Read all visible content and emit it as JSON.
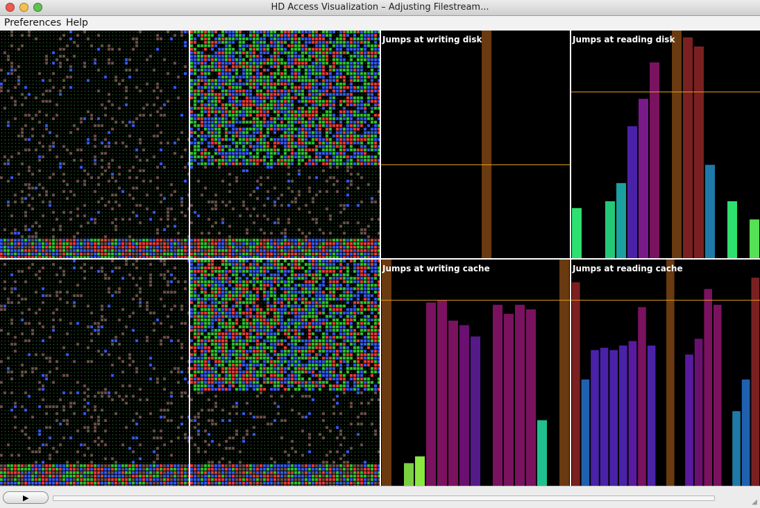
{
  "window": {
    "title": "HD Access Visualization – Adjusting Filestream...",
    "buttons": [
      {
        "name": "close-button",
        "color": "#ee5a50"
      },
      {
        "name": "minimize-button",
        "color": "#f6bf4f"
      },
      {
        "name": "zoom-button",
        "color": "#5fc151"
      }
    ]
  },
  "menu": {
    "items": [
      {
        "label": "Preferences"
      },
      {
        "label": "Help"
      }
    ]
  },
  "bitmaps": {
    "colors": [
      "#6b4a4a",
      "#2ecc2e",
      "#3355ff",
      "#ff3333",
      "#000000"
    ],
    "panels": [
      {
        "name": "bitmap-writing-disk",
        "style": "sparse"
      },
      {
        "name": "bitmap-reading-disk",
        "style": "dense-top"
      },
      {
        "name": "bitmap-writing-cache",
        "style": "sparse"
      },
      {
        "name": "bitmap-reading-cache",
        "style": "dense-top"
      }
    ]
  },
  "chart_data": [
    {
      "type": "bar",
      "title": "Jumps at writing disk",
      "ymax": 100,
      "threshold": 41,
      "threshold_color": "#e0a020",
      "values": [
        0,
        0,
        0,
        0,
        0,
        0,
        0,
        0,
        0,
        100,
        0,
        0,
        0,
        0,
        0,
        0,
        0
      ],
      "colors": [
        "#000",
        "#000",
        "#000",
        "#000",
        "#000",
        "#000",
        "#000",
        "#000",
        "#000",
        "#6a3a10",
        "#000",
        "#000",
        "#000",
        "#000",
        "#000",
        "#000",
        "#000"
      ]
    },
    {
      "type": "bar",
      "title": "Jumps at reading disk",
      "ymax": 100,
      "threshold": 73,
      "threshold_color": "#e0a020",
      "values": [
        22,
        0,
        0,
        25,
        33,
        58,
        70,
        86,
        0,
        100,
        97,
        93,
        41,
        0,
        25,
        0,
        17
      ],
      "colors": [
        "#2ee070",
        "#000",
        "#000",
        "#25c877",
        "#1aa0a0",
        "#4a22a8",
        "#7a1a8a",
        "#7a1260",
        "#000",
        "#6a3a10",
        "#7a2020",
        "#7a2020",
        "#1e7aa8",
        "#000",
        "#2ee070",
        "#000",
        "#55e055"
      ]
    },
    {
      "type": "bar",
      "title": "Jumps at writing cache",
      "ymax": 100,
      "threshold": 82,
      "threshold_color": "#e0a020",
      "values": [
        100,
        0,
        10,
        13,
        81,
        82,
        73,
        71,
        66,
        0,
        80,
        76,
        80,
        78,
        29,
        0,
        100
      ],
      "colors": [
        "#6a3a10",
        "#000",
        "#7ad040",
        "#8ae840",
        "#7a1260",
        "#7a1260",
        "#7a1260",
        "#6a1070",
        "#551a8a",
        "#000",
        "#7a1260",
        "#7a1260",
        "#7a1260",
        "#7a1260",
        "#20c090",
        "#000",
        "#6a3a10"
      ]
    },
    {
      "type": "bar",
      "title": "Jumps at reading cache",
      "ymax": 100,
      "threshold": 82,
      "threshold_color": "#e0a020",
      "values": [
        90,
        47,
        60,
        61,
        60,
        62,
        64,
        79,
        62,
        0,
        100,
        0,
        58,
        65,
        87,
        80,
        0,
        33,
        47,
        92
      ],
      "colors": [
        "#7a2020",
        "#2060b0",
        "#4a22a8",
        "#4a22a8",
        "#4a22a8",
        "#4a22a8",
        "#5a1aa0",
        "#7a1260",
        "#4a22a8",
        "#000",
        "#6a3a10",
        "#000",
        "#5a1aa0",
        "#6a1070",
        "#7a1260",
        "#7a1260",
        "#000",
        "#1e7aa8",
        "#2060b0",
        "#7a2020"
      ]
    }
  ],
  "controls": {
    "play_label": "▶"
  }
}
